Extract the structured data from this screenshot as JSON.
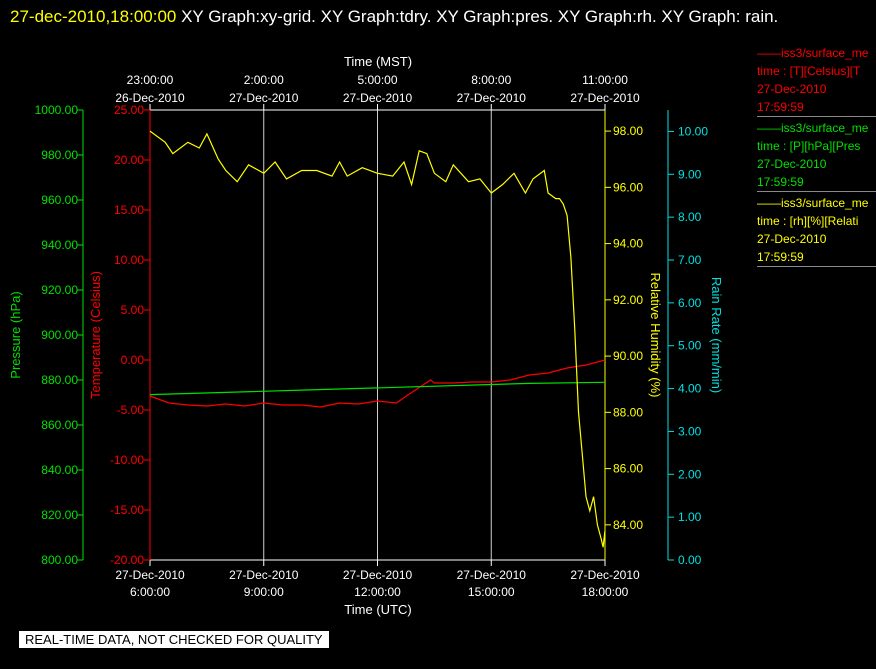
{
  "header": {
    "timestamp": "27-dec-2010,18:00:00",
    "graphs": "XY Graph:xy-grid.  XY Graph:tdry.  XY Graph:pres.  XY Graph:rh.  XY Graph: rain."
  },
  "legend": [
    {
      "lines": [
        "——iss3/surface_me",
        "time : [T][Celsius][T",
        "27-Dec-2010",
        "17:59:59"
      ],
      "color": "#ff0000"
    },
    {
      "lines": [
        "——iss3/surface_me",
        "time : [P][hPa][Pres",
        "27-Dec-2010",
        "17:59:59"
      ],
      "color": "#00e000"
    },
    {
      "lines": [
        "——iss3/surface_me",
        "time : [rh][%][Relati",
        "27-Dec-2010",
        "17:59:59"
      ],
      "color": "#ffff00"
    }
  ],
  "footer": {
    "qc_note": "REAL-TIME DATA, NOT CHECKED FOR QUALITY"
  },
  "chart_data": {
    "type": "line",
    "xlabel_bottom": "Time (UTC)",
    "xlabel_top": "Time (MST)",
    "x_range": [
      "2010-12-27T06:00",
      "2010-12-27T18:00"
    ],
    "x_ticks_bottom": [
      {
        "l1": "27-Dec-2010",
        "l2": "6:00:00"
      },
      {
        "l1": "27-Dec-2010",
        "l2": "9:00:00"
      },
      {
        "l1": "27-Dec-2010",
        "l2": "12:00:00"
      },
      {
        "l1": "27-Dec-2010",
        "l2": "15:00:00"
      },
      {
        "l1": "27-Dec-2010",
        "l2": "18:00:00"
      }
    ],
    "x_ticks_top": [
      {
        "l1": "23:00:00",
        "l2": "26-Dec-2010"
      },
      {
        "l1": "2:00:00",
        "l2": "27-Dec-2010"
      },
      {
        "l1": "5:00:00",
        "l2": "27-Dec-2010"
      },
      {
        "l1": "8:00:00",
        "l2": "27-Dec-2010"
      },
      {
        "l1": "11:00:00",
        "l2": "27-Dec-2010"
      }
    ],
    "grid": "vertical lines at major bottom ticks",
    "axes": {
      "pressure": {
        "label": "Pressure (hPa)",
        "range": [
          800,
          1000
        ],
        "ticks": [
          "800.00",
          "820.00",
          "840.00",
          "860.00",
          "880.00",
          "900.00",
          "920.00",
          "940.00",
          "960.00",
          "980.00",
          "1000.00"
        ],
        "color": "#00e000"
      },
      "temperature": {
        "label": "Temperature (Celsius)",
        "range": [
          -20,
          25
        ],
        "ticks": [
          "-20.00",
          "-15.00",
          "-10.00",
          "-5.00",
          "0.00",
          "5.00",
          "10.00",
          "15.00",
          "20.00",
          "25.00"
        ],
        "color": "#ff0000"
      },
      "humidity": {
        "label": "Relative Humidity (%)",
        "range": [
          82.75,
          98.75
        ],
        "ticks": [
          "84.00",
          "86.00",
          "88.00",
          "90.00",
          "92.00",
          "94.00",
          "96.00",
          "98.00"
        ],
        "color": "#ffff00"
      },
      "rain": {
        "label": "Rain Rate (mm/min)",
        "range": [
          0,
          10.5
        ],
        "ticks": [
          "0.00",
          "1.00",
          "2.00",
          "3.00",
          "4.00",
          "5.00",
          "6.00",
          "7.00",
          "8.00",
          "9.00",
          "10.00"
        ],
        "color": "#00e0e0"
      }
    },
    "series": [
      {
        "name": "iss3/surface_me time : [T][Celsius]",
        "axis": "temperature",
        "color": "#ff0000",
        "x": [
          6.0,
          6.5,
          7.0,
          7.5,
          8.0,
          8.5,
          9.0,
          9.5,
          10.0,
          10.5,
          11.0,
          11.5,
          12.0,
          12.5,
          12.8,
          13.0,
          13.4,
          13.5,
          14.0,
          14.5,
          15.0,
          15.5,
          16.0,
          16.5,
          17.0,
          17.5,
          18.0
        ],
        "y": [
          -3.6,
          -4.3,
          -4.5,
          -4.6,
          -4.4,
          -4.6,
          -4.3,
          -4.5,
          -4.5,
          -4.7,
          -4.3,
          -4.4,
          -4.1,
          -4.3,
          -3.5,
          -3.0,
          -2.0,
          -2.3,
          -2.3,
          -2.2,
          -2.2,
          -2.0,
          -1.5,
          -1.3,
          -0.8,
          -0.5,
          0.0
        ]
      },
      {
        "name": "iss3/surface_me time : [P][hPa]",
        "axis": "pressure",
        "color": "#00e000",
        "x": [
          6.0,
          8.0,
          10.0,
          12.0,
          14.0,
          16.0,
          18.0
        ],
        "y": [
          873.5,
          874.5,
          875.5,
          876.5,
          877.5,
          878.5,
          879.0
        ]
      },
      {
        "name": "iss3/surface_me time : [rh][%]",
        "axis": "humidity",
        "color": "#ffff00",
        "x": [
          6.0,
          6.4,
          6.6,
          7.0,
          7.3,
          7.5,
          7.8,
          8.0,
          8.3,
          8.6,
          9.0,
          9.3,
          9.6,
          10.0,
          10.4,
          10.8,
          11.0,
          11.2,
          11.6,
          12.0,
          12.4,
          12.7,
          12.9,
          13.1,
          13.3,
          13.5,
          13.8,
          14.0,
          14.4,
          14.7,
          15.0,
          15.3,
          15.6,
          15.9,
          16.1,
          16.4,
          16.5,
          16.7,
          16.8,
          16.9,
          17.0,
          17.1,
          17.2,
          17.3,
          17.4,
          17.5,
          17.6,
          17.7,
          17.8,
          17.9,
          17.95,
          18.0
        ],
        "y": [
          98.0,
          97.6,
          97.2,
          97.6,
          97.4,
          97.9,
          97.0,
          96.6,
          96.2,
          96.8,
          96.5,
          96.9,
          96.3,
          96.6,
          96.6,
          96.4,
          96.9,
          96.4,
          96.7,
          96.5,
          96.4,
          96.9,
          96.1,
          97.3,
          97.2,
          96.5,
          96.2,
          96.8,
          96.2,
          96.3,
          95.8,
          96.1,
          96.5,
          95.8,
          96.3,
          96.6,
          95.8,
          95.6,
          95.6,
          95.4,
          95.0,
          93.5,
          91.0,
          88.0,
          86.5,
          85.0,
          84.5,
          85.0,
          84.0,
          83.5,
          83.2,
          83.8
        ]
      }
    ]
  }
}
